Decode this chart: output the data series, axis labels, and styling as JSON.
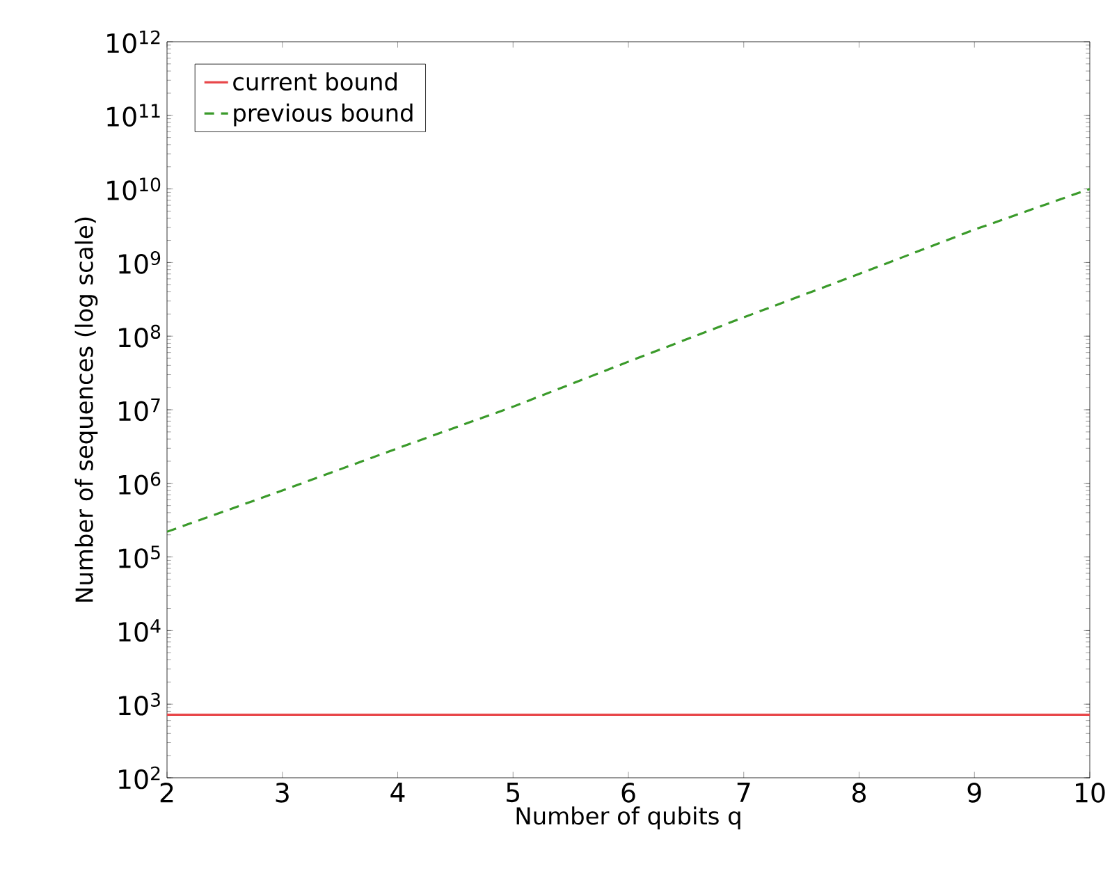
{
  "chart_data": {
    "type": "line",
    "xlabel": "Number of qubits q",
    "ylabel": "Number of sequences (log scale)",
    "x": [
      2,
      3,
      4,
      5,
      6,
      7,
      8,
      9,
      10
    ],
    "series": [
      {
        "name": "current bound",
        "color": "#e8474a",
        "line_style": "solid",
        "values": [
          720,
          720,
          720,
          720,
          720,
          720,
          720,
          720,
          720
        ]
      },
      {
        "name": "previous bound",
        "color": "#3a9a2a",
        "line_style": "dashed",
        "values": [
          220000,
          800000,
          3000000,
          11000000,
          45000000,
          180000000,
          700000000,
          2800000000,
          10000000000
        ]
      }
    ],
    "log": "y",
    "xlim": [
      2,
      10
    ],
    "ylim": [
      100,
      1000000000000
    ],
    "xticks": [
      2,
      3,
      4,
      5,
      6,
      7,
      8,
      9,
      10
    ],
    "yticks": [
      {
        "value": 100,
        "label": "10$^{2}$"
      },
      {
        "value": 1000,
        "label": "10$^{3}$"
      },
      {
        "value": 10000,
        "label": "10$^{4}$"
      },
      {
        "value": 100000,
        "label": "10$^{5}$"
      },
      {
        "value": 1000000,
        "label": "10$^{6}$"
      },
      {
        "value": 10000000,
        "label": "10$^{7}$"
      },
      {
        "value": 100000000,
        "label": "10$^{8}$"
      },
      {
        "value": 1000000000,
        "label": "10$^{9}$"
      },
      {
        "value": 10000000000,
        "label": "10$^{10}$"
      },
      {
        "value": 100000000000,
        "label": "10$^{11}$"
      },
      {
        "value": 1000000000000,
        "label": "10$^{12}$"
      }
    ],
    "grid": false,
    "legend": "top left"
  }
}
